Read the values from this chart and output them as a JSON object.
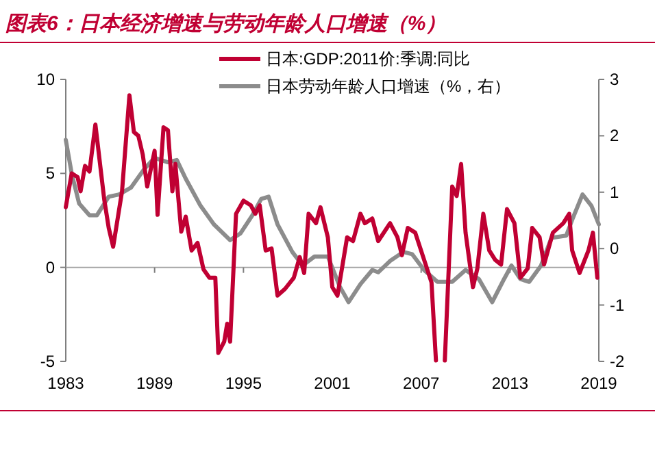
{
  "chart_data": {
    "type": "line",
    "title": "图表6：日本经济增速与劳动年龄人口增速（%）",
    "xlim": [
      1983,
      2019
    ],
    "xticks": [
      1983,
      1989,
      1995,
      2001,
      2007,
      2013,
      2019
    ],
    "ylim": [
      -5,
      10
    ],
    "yticks": [
      -5,
      0,
      5,
      10
    ],
    "y2lim": [
      -2,
      3
    ],
    "y2ticks": [
      -2,
      -1,
      0,
      1,
      2,
      3
    ],
    "legend": "top",
    "grid": false,
    "marker": "none",
    "line_style": "solid",
    "ref_lines": [
      {
        "axis": "y",
        "value": 0,
        "color": "#a6a6a6"
      }
    ],
    "series": [
      {
        "name": "日本:GDP:2011价:季调:同比",
        "color": "#c00033",
        "x": [
          1983.0,
          1983.4,
          1983.8,
          1984.0,
          1984.3,
          1984.6,
          1985.0,
          1985.6,
          1985.9,
          1986.2,
          1986.8,
          1987.3,
          1987.6,
          1987.9,
          1988.2,
          1988.5,
          1989.0,
          1989.2,
          1989.6,
          1989.9,
          1990.2,
          1990.4,
          1990.8,
          1991.1,
          1991.5,
          1991.9,
          1992.3,
          1992.7,
          1993.1,
          1993.3,
          1993.7,
          1993.9,
          1994.1,
          1994.5,
          1995.0,
          1995.5,
          1995.8,
          1996.1,
          1996.5,
          1996.9,
          1997.3,
          1997.8,
          1998.4,
          1998.8,
          1999.1,
          1999.4,
          1999.9,
          2000.2,
          2000.7,
          2001.0,
          2001.35,
          2002.0,
          2002.4,
          2002.9,
          2003.2,
          2003.7,
          2004.1,
          2004.9,
          2005.4,
          2005.7,
          2006.1,
          2006.6,
          2007.1,
          2007.7,
          2008.0,
          2008.3,
          2008.6,
          2009.1,
          2009.4,
          2009.7,
          2010.0,
          2010.5,
          2010.8,
          2011.2,
          2011.6,
          2012.0,
          2012.4,
          2012.8,
          2013.3,
          2013.7,
          2014.2,
          2014.5,
          2015.0,
          2015.3,
          2015.9,
          2016.6,
          2017.0,
          2017.2,
          2017.7,
          2018.3,
          2018.6,
          2018.9
        ],
        "values": [
          3.2,
          5.0,
          4.8,
          4.05,
          5.4,
          5.1,
          7.6,
          3.6,
          2.1,
          1.1,
          4.05,
          9.15,
          7.2,
          7.0,
          6.0,
          4.3,
          6.2,
          2.8,
          7.45,
          7.3,
          4.05,
          5.5,
          1.9,
          2.7,
          0.9,
          1.3,
          -0.1,
          -0.55,
          -0.55,
          -4.55,
          -3.95,
          -3.0,
          -3.95,
          2.85,
          3.55,
          3.3,
          2.85,
          3.3,
          0.9,
          1.0,
          -1.5,
          -1.15,
          -0.55,
          0.55,
          -0.3,
          2.85,
          2.35,
          3.2,
          1.6,
          -1.05,
          -1.5,
          1.6,
          1.4,
          2.85,
          2.35,
          2.6,
          1.4,
          2.35,
          1.6,
          0.65,
          2.1,
          1.85,
          0.65,
          -0.8,
          -4.95,
          null,
          -4.95,
          4.3,
          3.8,
          5.5,
          1.85,
          -1.05,
          -0.05,
          2.85,
          0.9,
          0.4,
          0.15,
          3.1,
          2.35,
          -0.55,
          -0.05,
          2.1,
          1.6,
          0.15,
          1.85,
          2.35,
          2.85,
          0.9,
          -0.3,
          0.9,
          1.85,
          -0.55
        ]
      },
      {
        "name": "日本劳动年龄人口增速（%，右）",
        "color": "#8c8c8c",
        "axis": "y2",
        "x": [
          1983.0,
          1983.4,
          1983.9,
          1984.6,
          1985.1,
          1985.9,
          1986.6,
          1987.4,
          1988.3,
          1989.0,
          1989.9,
          1990.5,
          1991.1,
          1992.1,
          1993.0,
          1994.1,
          1994.8,
          1995.6,
          1996.2,
          1996.7,
          1997.3,
          1998.3,
          1999.0,
          1999.8,
          2000.7,
          2001.5,
          2002.1,
          2002.9,
          2003.7,
          2004.1,
          2004.9,
          2005.8,
          2006.4,
          2007.2,
          2008.1,
          2009.1,
          2010.0,
          2010.9,
          2011.8,
          2012.6,
          2013.1,
          2013.7,
          2014.3,
          2015.1,
          2015.8,
          2016.8,
          2017.2,
          2017.9,
          2018.5,
          2019.0
        ],
        "values": [
          1.93,
          1.33,
          0.8,
          0.59,
          0.59,
          0.92,
          0.96,
          1.08,
          1.41,
          1.61,
          1.53,
          1.57,
          1.24,
          0.76,
          0.43,
          0.15,
          0.27,
          0.59,
          0.88,
          0.92,
          0.43,
          -0.06,
          -0.3,
          -0.14,
          -0.14,
          -0.67,
          -0.95,
          -0.63,
          -0.38,
          -0.42,
          -0.22,
          -0.06,
          -0.1,
          -0.38,
          -0.59,
          -0.59,
          -0.38,
          -0.54,
          -0.95,
          -0.54,
          -0.3,
          -0.54,
          -0.59,
          -0.3,
          0.19,
          0.23,
          0.51,
          0.96,
          0.76,
          0.43
        ]
      }
    ]
  }
}
